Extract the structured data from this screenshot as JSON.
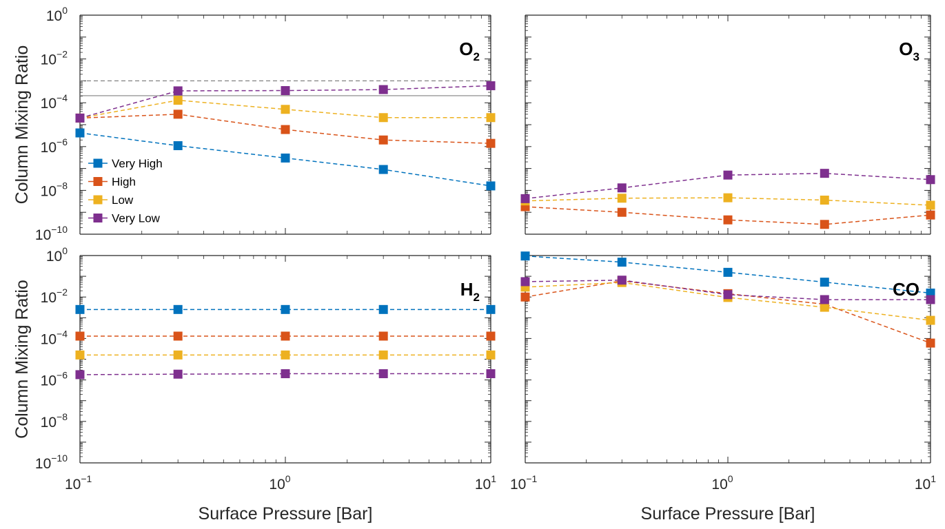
{
  "chart_data": [
    {
      "type": "line",
      "panel_label": "O",
      "panel_label_sub": "2",
      "x_scale": "log",
      "y_scale": "log",
      "xlim": [
        0.1,
        10
      ],
      "ylim": [
        1e-10,
        1
      ],
      "xlabel": "",
      "ylabel": "Column Mixing Ratio",
      "x": [
        0.1,
        0.3,
        1,
        3,
        10
      ],
      "series": [
        {
          "name": "Very High",
          "color": "#0072BD",
          "values": [
            4.2e-06,
            1.1e-06,
            3e-07,
            9e-08,
            1.6e-08
          ]
        },
        {
          "name": "High",
          "color": "#D95319",
          "values": [
            2e-05,
            3e-05,
            6e-06,
            2e-06,
            1.4e-06
          ]
        },
        {
          "name": "Low",
          "color": "#EDB120",
          "values": [
            2e-05,
            0.00013,
            5e-05,
            2.1e-05,
            2.1e-05
          ]
        },
        {
          "name": "Very Low",
          "color": "#7E2F8E",
          "values": [
            2e-05,
            0.00035,
            0.00036,
            0.0004,
            0.0006
          ]
        }
      ],
      "reference_lines": [
        {
          "y": 0.001,
          "style": "dashed",
          "color": "#808080"
        },
        {
          "y": 0.00021,
          "style": "solid",
          "color": "#808080"
        }
      ],
      "legend": {
        "placement": "lower-left",
        "entries": [
          "Very High",
          "High",
          "Low",
          "Very Low"
        ]
      },
      "show_x_ticklabels": false,
      "show_y_ticklabels": true
    },
    {
      "type": "line",
      "panel_label": "O",
      "panel_label_sub": "3",
      "x_scale": "log",
      "y_scale": "log",
      "xlim": [
        0.1,
        10
      ],
      "ylim": [
        1e-10,
        1
      ],
      "xlabel": "",
      "ylabel": "",
      "x": [
        0.1,
        0.3,
        1,
        3,
        10
      ],
      "series": [
        {
          "name": "High",
          "color": "#D95319",
          "values": [
            1.8e-09,
            1e-09,
            4.5e-10,
            2.8e-10,
            7.5e-10
          ]
        },
        {
          "name": "Low",
          "color": "#EDB120",
          "values": [
            3.3e-09,
            4.4e-09,
            4.6e-09,
            3.6e-09,
            2.1e-09
          ]
        },
        {
          "name": "Very Low",
          "color": "#7E2F8E",
          "values": [
            4.2e-09,
            1.3e-08,
            5e-08,
            6e-08,
            3.1e-08
          ]
        }
      ],
      "show_x_ticklabels": false,
      "show_y_ticklabels": false
    },
    {
      "type": "line",
      "panel_label": "H",
      "panel_label_sub": "2",
      "x_scale": "log",
      "y_scale": "log",
      "xlim": [
        0.1,
        10
      ],
      "ylim": [
        1e-10,
        1
      ],
      "xlabel": "Surface Pressure [Bar]",
      "ylabel": "Column Mixing Ratio",
      "x": [
        0.1,
        0.3,
        1,
        3,
        10
      ],
      "series": [
        {
          "name": "Very High",
          "color": "#0072BD",
          "values": [
            0.0025,
            0.0025,
            0.0025,
            0.0025,
            0.0025
          ]
        },
        {
          "name": "High",
          "color": "#D95319",
          "values": [
            0.00013,
            0.00013,
            0.00013,
            0.00013,
            0.00013
          ]
        },
        {
          "name": "Low",
          "color": "#EDB120",
          "values": [
            1.6e-05,
            1.6e-05,
            1.6e-05,
            1.6e-05,
            1.6e-05
          ]
        },
        {
          "name": "Very Low",
          "color": "#7E2F8E",
          "values": [
            1.8e-06,
            1.9e-06,
            2e-06,
            2e-06,
            2e-06
          ]
        }
      ],
      "show_x_ticklabels": true,
      "show_y_ticklabels": true
    },
    {
      "type": "line",
      "panel_label": "CO",
      "panel_label_sub": "",
      "x_scale": "log",
      "y_scale": "log",
      "xlim": [
        0.1,
        10
      ],
      "ylim": [
        1e-10,
        1
      ],
      "xlabel": "Surface Pressure [Bar]",
      "ylabel": "",
      "x": [
        0.1,
        0.3,
        1,
        3,
        10
      ],
      "series": [
        {
          "name": "Very High",
          "color": "#0072BD",
          "values": [
            0.95,
            0.48,
            0.155,
            0.052,
            0.0155
          ]
        },
        {
          "name": "High",
          "color": "#D95319",
          "values": [
            0.01,
            0.06,
            0.0145,
            0.0045,
            6e-05
          ]
        },
        {
          "name": "Low",
          "color": "#EDB120",
          "values": [
            0.03,
            0.05,
            0.0095,
            0.0032,
            0.00075
          ]
        },
        {
          "name": "Very Low",
          "color": "#7E2F8E",
          "values": [
            0.055,
            0.065,
            0.013,
            0.0075,
            0.0075
          ]
        }
      ],
      "show_x_ticklabels": true,
      "show_y_ticklabels": false
    }
  ]
}
